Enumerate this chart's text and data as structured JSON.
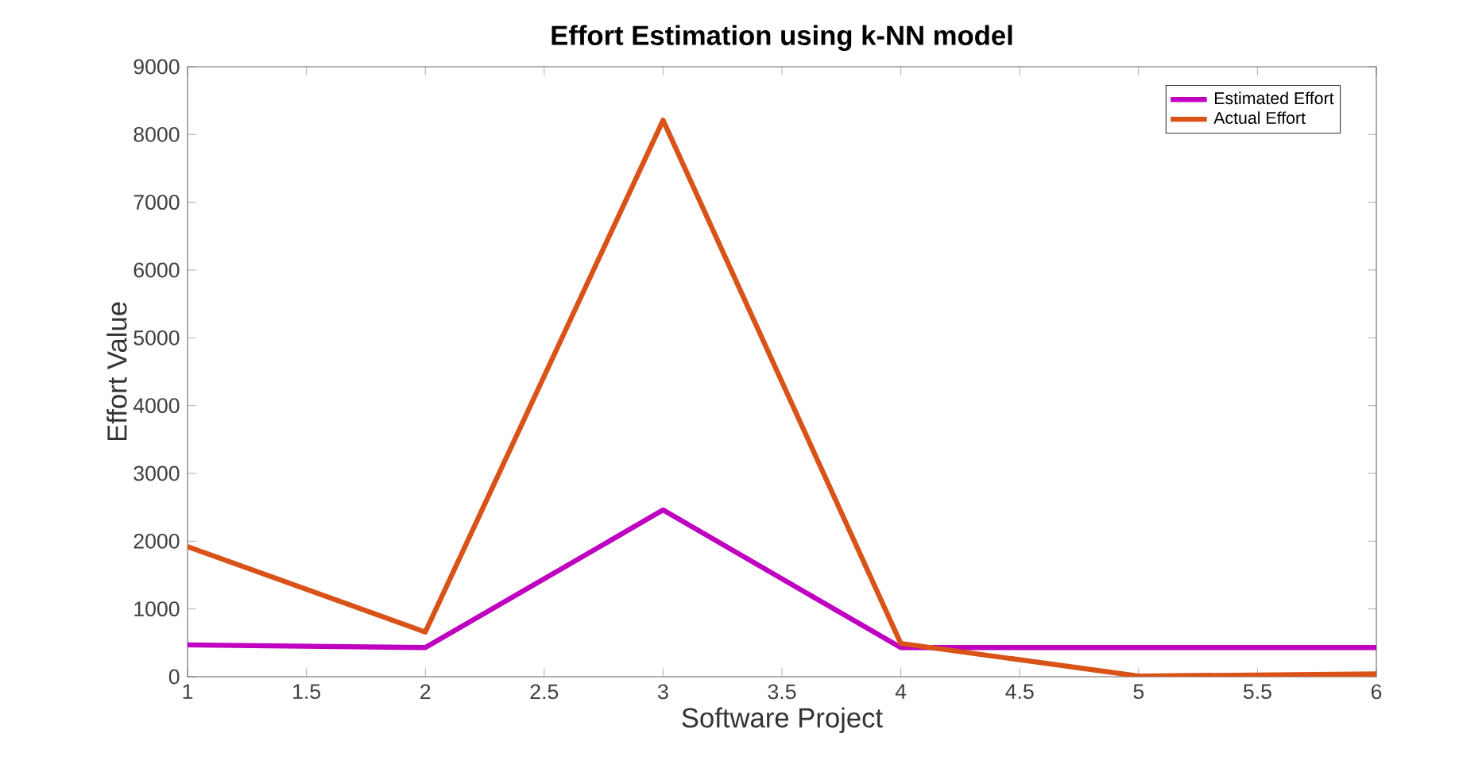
{
  "chart_data": {
    "type": "line",
    "title": "Effort Estimation using k-NN model",
    "xlabel": "Software Project",
    "ylabel": "Effort Value",
    "x": [
      1,
      2,
      3,
      4,
      5,
      6
    ],
    "series": [
      {
        "name": "Estimated Effort",
        "color": "#c000c0",
        "values": [
          470,
          430,
          2460,
          430,
          430,
          430
        ]
      },
      {
        "name": "Actual Effort",
        "color": "#d95319",
        "values": [
          1920,
          660,
          8210,
          490,
          10,
          40
        ]
      }
    ],
    "xlim": [
      1,
      6
    ],
    "ylim": [
      0,
      9000
    ],
    "xticks": [
      1,
      1.5,
      2,
      2.5,
      3,
      3.5,
      4,
      4.5,
      5,
      5.5,
      6
    ],
    "yticks": [
      0,
      1000,
      2000,
      3000,
      4000,
      5000,
      6000,
      7000,
      8000,
      9000
    ],
    "grid": false,
    "legend": "top right",
    "marker": "none",
    "line_style": "solid"
  }
}
